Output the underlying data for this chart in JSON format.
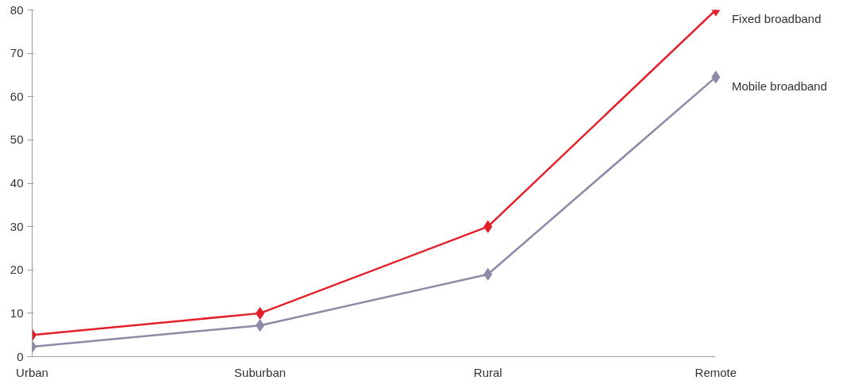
{
  "chart_data": {
    "type": "line",
    "categories": [
      "Urban",
      "Suburban",
      "Rural",
      "Remote"
    ],
    "series": [
      {
        "name": "Fixed broadband",
        "color": "#e3202a",
        "values": [
          5,
          10,
          30,
          80
        ]
      },
      {
        "name": "Mobile broadband",
        "color": "#8c8aa6",
        "values": [
          2.3,
          7.2,
          19,
          64.5
        ]
      }
    ],
    "ylim": [
      0,
      80
    ],
    "yticks": [
      0,
      10,
      20,
      30,
      40,
      50,
      60,
      70,
      80
    ],
    "grid": false,
    "legend": false,
    "marker": "diamond",
    "line_style": "solid"
  }
}
